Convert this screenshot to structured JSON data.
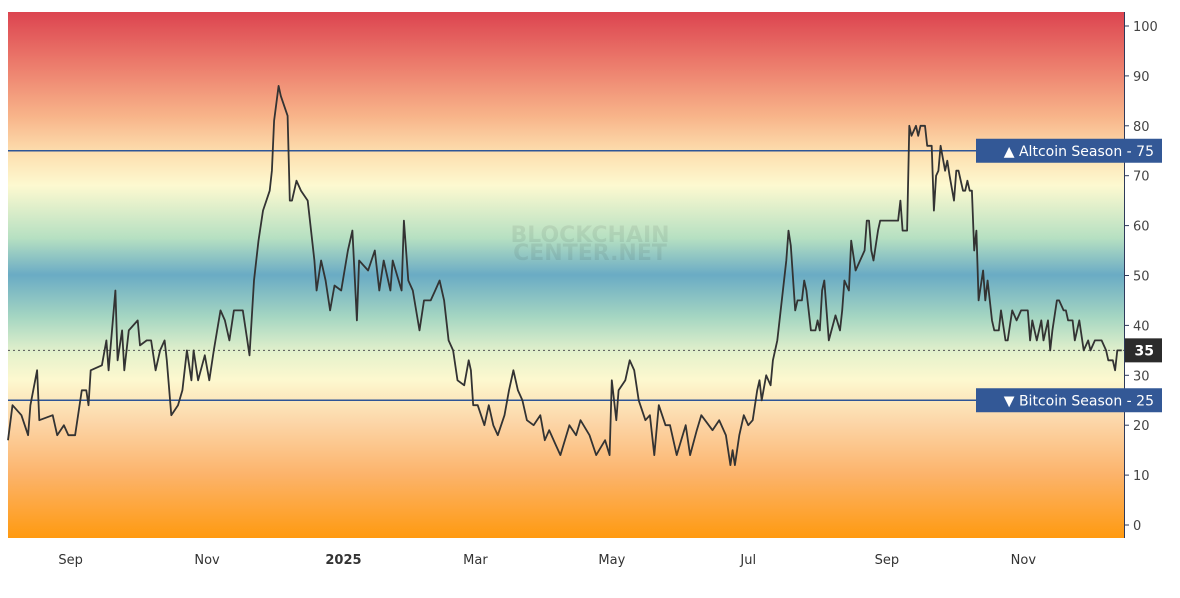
{
  "watermark": [
    "BLOCKCHAIN",
    "CENTER.NET"
  ],
  "colors": {
    "line": "#333333",
    "threshold_line": "#2e5597",
    "label_box": "#335896",
    "current_box": "#2b2b2b",
    "gradient_top": "#dc4450",
    "gradient_mid": "#6aabc4",
    "gradient_bottom": "#ff9a10"
  },
  "chart_data": {
    "type": "line",
    "title": "",
    "xlabel": "",
    "ylabel": "",
    "ylim": [
      0,
      100
    ],
    "xlim": [
      "2024-08-04",
      "2025-12-16"
    ],
    "grid": false,
    "y_ticks": [
      "0",
      "10",
      "20",
      "30",
      "40",
      "50",
      "60",
      "70",
      "80",
      "90",
      "100"
    ],
    "x_ticks": [
      {
        "date": "2024-09-01",
        "label": "Sep",
        "bold": false
      },
      {
        "date": "2024-11-01",
        "label": "Nov",
        "bold": false
      },
      {
        "date": "2025-01-01",
        "label": "2025",
        "bold": true
      },
      {
        "date": "2025-03-01",
        "label": "Mar",
        "bold": false
      },
      {
        "date": "2025-05-01",
        "label": "May",
        "bold": false
      },
      {
        "date": "2025-07-01",
        "label": "Jul",
        "bold": false
      },
      {
        "date": "2025-09-01",
        "label": "Sep",
        "bold": false
      },
      {
        "date": "2025-11-01",
        "label": "Nov",
        "bold": false
      }
    ],
    "thresholds": [
      {
        "value": 75,
        "label": "▲ Altcoin Season - 75"
      },
      {
        "value": 25,
        "label": "▼ Bitcoin Season - 25"
      }
    ],
    "current_value": {
      "value": 35,
      "label": "35"
    },
    "series": [
      {
        "points": [
          [
            "2024-08-04",
            17
          ],
          [
            "2024-08-06",
            24
          ],
          [
            "2024-08-10",
            22
          ],
          [
            "2024-08-13",
            18
          ],
          [
            "2024-08-14",
            24
          ],
          [
            "2024-08-17",
            31
          ],
          [
            "2024-08-18",
            21
          ],
          [
            "2024-08-24",
            22
          ],
          [
            "2024-08-26",
            18
          ],
          [
            "2024-08-29",
            20
          ],
          [
            "2024-08-31",
            18
          ],
          [
            "2024-09-03",
            18
          ],
          [
            "2024-09-06",
            27
          ],
          [
            "2024-09-08",
            27
          ],
          [
            "2024-09-09",
            24
          ],
          [
            "2024-09-10",
            31
          ],
          [
            "2024-09-15",
            32
          ],
          [
            "2024-09-17",
            37
          ],
          [
            "2024-09-18",
            31
          ],
          [
            "2024-09-21",
            47
          ],
          [
            "2024-09-22",
            33
          ],
          [
            "2024-09-24",
            39
          ],
          [
            "2024-09-25",
            31
          ],
          [
            "2024-09-27",
            39
          ],
          [
            "2024-10-01",
            41
          ],
          [
            "2024-10-02",
            36
          ],
          [
            "2024-10-05",
            37
          ],
          [
            "2024-10-07",
            37
          ],
          [
            "2024-10-09",
            31
          ],
          [
            "2024-10-11",
            35
          ],
          [
            "2024-10-13",
            37
          ],
          [
            "2024-10-14",
            33
          ],
          [
            "2024-10-16",
            22
          ],
          [
            "2024-10-19",
            24
          ],
          [
            "2024-10-21",
            27
          ],
          [
            "2024-10-23",
            35
          ],
          [
            "2024-10-25",
            29
          ],
          [
            "2024-10-26",
            35
          ],
          [
            "2024-10-28",
            29
          ],
          [
            "2024-10-31",
            34
          ],
          [
            "2024-11-02",
            29
          ],
          [
            "2024-11-04",
            35
          ],
          [
            "2024-11-07",
            43
          ],
          [
            "2024-11-09",
            41
          ],
          [
            "2024-11-11",
            37
          ],
          [
            "2024-11-13",
            43
          ],
          [
            "2024-11-17",
            43
          ],
          [
            "2024-11-19",
            37
          ],
          [
            "2024-11-20",
            34
          ],
          [
            "2024-11-22",
            49
          ],
          [
            "2024-11-24",
            57
          ],
          [
            "2024-11-26",
            63
          ],
          [
            "2024-11-29",
            67
          ],
          [
            "2024-11-30",
            71
          ],
          [
            "2024-12-01",
            81
          ],
          [
            "2024-12-03",
            88
          ],
          [
            "2024-12-04",
            86
          ],
          [
            "2024-12-07",
            82
          ],
          [
            "2024-12-08",
            65
          ],
          [
            "2024-12-09",
            65
          ],
          [
            "2024-12-11",
            69
          ],
          [
            "2024-12-13",
            67
          ],
          [
            "2024-12-16",
            65
          ],
          [
            "2024-12-19",
            53
          ],
          [
            "2024-12-20",
            47
          ],
          [
            "2024-12-22",
            53
          ],
          [
            "2024-12-24",
            49
          ],
          [
            "2024-12-26",
            43
          ],
          [
            "2024-12-28",
            48
          ],
          [
            "2024-12-31",
            47
          ],
          [
            "2025-01-03",
            55
          ],
          [
            "2025-01-05",
            59
          ],
          [
            "2025-01-07",
            41
          ],
          [
            "2025-01-08",
            53
          ],
          [
            "2025-01-12",
            51
          ],
          [
            "2025-01-15",
            55
          ],
          [
            "2025-01-17",
            47
          ],
          [
            "2025-01-19",
            53
          ],
          [
            "2025-01-22",
            47
          ],
          [
            "2025-01-23",
            53
          ],
          [
            "2025-01-27",
            47
          ],
          [
            "2025-01-28",
            61
          ],
          [
            "2025-01-30",
            49
          ],
          [
            "2025-02-01",
            47
          ],
          [
            "2025-02-04",
            39
          ],
          [
            "2025-02-06",
            45
          ],
          [
            "2025-02-09",
            45
          ],
          [
            "2025-02-11",
            47
          ],
          [
            "2025-02-13",
            49
          ],
          [
            "2025-02-15",
            45
          ],
          [
            "2025-02-17",
            37
          ],
          [
            "2025-02-19",
            35
          ],
          [
            "2025-02-21",
            29
          ],
          [
            "2025-02-24",
            28
          ],
          [
            "2025-02-26",
            33
          ],
          [
            "2025-02-27",
            31
          ],
          [
            "2025-02-28",
            24
          ],
          [
            "2025-03-02",
            24
          ],
          [
            "2025-03-05",
            20
          ],
          [
            "2025-03-07",
            24
          ],
          [
            "2025-03-09",
            20
          ],
          [
            "2025-03-11",
            18
          ],
          [
            "2025-03-14",
            22
          ],
          [
            "2025-03-16",
            27
          ],
          [
            "2025-03-18",
            31
          ],
          [
            "2025-03-20",
            27
          ],
          [
            "2025-03-22",
            25
          ],
          [
            "2025-03-24",
            21
          ],
          [
            "2025-03-27",
            20
          ],
          [
            "2025-03-30",
            22
          ],
          [
            "2025-04-01",
            17
          ],
          [
            "2025-04-03",
            19
          ],
          [
            "2025-04-06",
            16
          ],
          [
            "2025-04-08",
            14
          ],
          [
            "2025-04-12",
            20
          ],
          [
            "2025-04-15",
            18
          ],
          [
            "2025-04-17",
            21
          ],
          [
            "2025-04-21",
            18
          ],
          [
            "2025-04-24",
            14
          ],
          [
            "2025-04-28",
            17
          ],
          [
            "2025-04-30",
            14
          ],
          [
            "2025-05-01",
            29
          ],
          [
            "2025-05-03",
            21
          ],
          [
            "2025-05-04",
            27
          ],
          [
            "2025-05-07",
            29
          ],
          [
            "2025-05-09",
            33
          ],
          [
            "2025-05-11",
            31
          ],
          [
            "2025-05-13",
            25
          ],
          [
            "2025-05-16",
            21
          ],
          [
            "2025-05-18",
            22
          ],
          [
            "2025-05-20",
            14
          ],
          [
            "2025-05-22",
            24
          ],
          [
            "2025-05-25",
            20
          ],
          [
            "2025-05-27",
            20
          ],
          [
            "2025-05-30",
            14
          ],
          [
            "2025-06-03",
            20
          ],
          [
            "2025-06-05",
            14
          ],
          [
            "2025-06-08",
            19
          ],
          [
            "2025-06-10",
            22
          ],
          [
            "2025-06-15",
            19
          ],
          [
            "2025-06-18",
            21
          ],
          [
            "2025-06-21",
            18
          ],
          [
            "2025-06-23",
            12
          ],
          [
            "2025-06-24",
            15
          ],
          [
            "2025-06-25",
            12
          ],
          [
            "2025-06-27",
            18
          ],
          [
            "2025-06-29",
            22
          ],
          [
            "2025-07-01",
            20
          ],
          [
            "2025-07-03",
            21
          ],
          [
            "2025-07-05",
            27
          ],
          [
            "2025-07-06",
            29
          ],
          [
            "2025-07-07",
            25
          ],
          [
            "2025-07-09",
            30
          ],
          [
            "2025-07-11",
            28
          ],
          [
            "2025-07-12",
            33
          ],
          [
            "2025-07-13",
            35
          ],
          [
            "2025-07-14",
            37
          ],
          [
            "2025-07-16",
            45
          ],
          [
            "2025-07-18",
            53
          ],
          [
            "2025-07-19",
            59
          ],
          [
            "2025-07-20",
            56
          ],
          [
            "2025-07-22",
            43
          ],
          [
            "2025-07-23",
            45
          ],
          [
            "2025-07-25",
            45
          ],
          [
            "2025-07-26",
            49
          ],
          [
            "2025-07-27",
            47
          ],
          [
            "2025-07-29",
            39
          ],
          [
            "2025-07-31",
            39
          ],
          [
            "2025-08-01",
            41
          ],
          [
            "2025-08-02",
            39
          ],
          [
            "2025-08-03",
            47
          ],
          [
            "2025-08-04",
            49
          ],
          [
            "2025-08-06",
            37
          ],
          [
            "2025-08-09",
            42
          ],
          [
            "2025-08-11",
            39
          ],
          [
            "2025-08-12",
            43
          ],
          [
            "2025-08-13",
            49
          ],
          [
            "2025-08-15",
            47
          ],
          [
            "2025-08-16",
            57
          ],
          [
            "2025-08-18",
            51
          ],
          [
            "2025-08-20",
            53
          ],
          [
            "2025-08-22",
            55
          ],
          [
            "2025-08-23",
            61
          ],
          [
            "2025-08-24",
            61
          ],
          [
            "2025-08-25",
            55
          ],
          [
            "2025-08-26",
            53
          ],
          [
            "2025-08-28",
            59
          ],
          [
            "2025-08-29",
            61
          ],
          [
            "2025-09-06",
            61
          ],
          [
            "2025-09-07",
            65
          ],
          [
            "2025-09-08",
            59
          ],
          [
            "2025-09-10",
            59
          ],
          [
            "2025-09-11",
            80
          ],
          [
            "2025-09-12",
            78
          ],
          [
            "2025-09-14",
            80
          ],
          [
            "2025-09-15",
            78
          ],
          [
            "2025-09-16",
            80
          ],
          [
            "2025-09-18",
            80
          ],
          [
            "2025-09-19",
            76
          ],
          [
            "2025-09-21",
            76
          ],
          [
            "2025-09-22",
            63
          ],
          [
            "2025-09-23",
            70
          ],
          [
            "2025-09-24",
            71
          ],
          [
            "2025-09-25",
            76
          ],
          [
            "2025-09-27",
            71
          ],
          [
            "2025-09-28",
            73
          ],
          [
            "2025-09-29",
            70
          ],
          [
            "2025-10-01",
            65
          ],
          [
            "2025-10-02",
            71
          ],
          [
            "2025-10-03",
            71
          ],
          [
            "2025-10-05",
            67
          ],
          [
            "2025-10-06",
            67
          ],
          [
            "2025-10-07",
            69
          ],
          [
            "2025-10-08",
            67
          ],
          [
            "2025-10-09",
            67
          ],
          [
            "2025-10-10",
            55
          ],
          [
            "2025-10-11",
            59
          ],
          [
            "2025-10-12",
            45
          ],
          [
            "2025-10-14",
            51
          ],
          [
            "2025-10-15",
            45
          ],
          [
            "2025-10-16",
            49
          ],
          [
            "2025-10-18",
            41
          ],
          [
            "2025-10-19",
            39
          ],
          [
            "2025-10-21",
            39
          ],
          [
            "2025-10-22",
            43
          ],
          [
            "2025-10-24",
            37
          ],
          [
            "2025-10-25",
            37
          ],
          [
            "2025-10-27",
            43
          ],
          [
            "2025-10-29",
            41
          ],
          [
            "2025-10-31",
            43
          ],
          [
            "2025-11-03",
            43
          ],
          [
            "2025-11-04",
            37
          ],
          [
            "2025-11-05",
            41
          ],
          [
            "2025-11-07",
            37
          ],
          [
            "2025-11-09",
            41
          ],
          [
            "2025-11-10",
            37
          ],
          [
            "2025-11-12",
            41
          ],
          [
            "2025-11-13",
            35
          ],
          [
            "2025-11-14",
            39
          ],
          [
            "2025-11-16",
            45
          ],
          [
            "2025-11-17",
            45
          ],
          [
            "2025-11-19",
            43
          ],
          [
            "2025-11-20",
            43
          ],
          [
            "2025-11-21",
            41
          ],
          [
            "2025-11-23",
            41
          ],
          [
            "2025-11-24",
            37
          ],
          [
            "2025-11-26",
            41
          ],
          [
            "2025-11-28",
            35
          ],
          [
            "2025-11-30",
            37
          ],
          [
            "2025-12-01",
            35
          ],
          [
            "2025-12-03",
            37
          ],
          [
            "2025-12-06",
            37
          ],
          [
            "2025-12-08",
            35
          ],
          [
            "2025-12-09",
            33
          ],
          [
            "2025-12-11",
            33
          ],
          [
            "2025-12-12",
            31
          ],
          [
            "2025-12-13",
            35
          ],
          [
            "2025-12-15",
            35
          ]
        ]
      }
    ]
  }
}
